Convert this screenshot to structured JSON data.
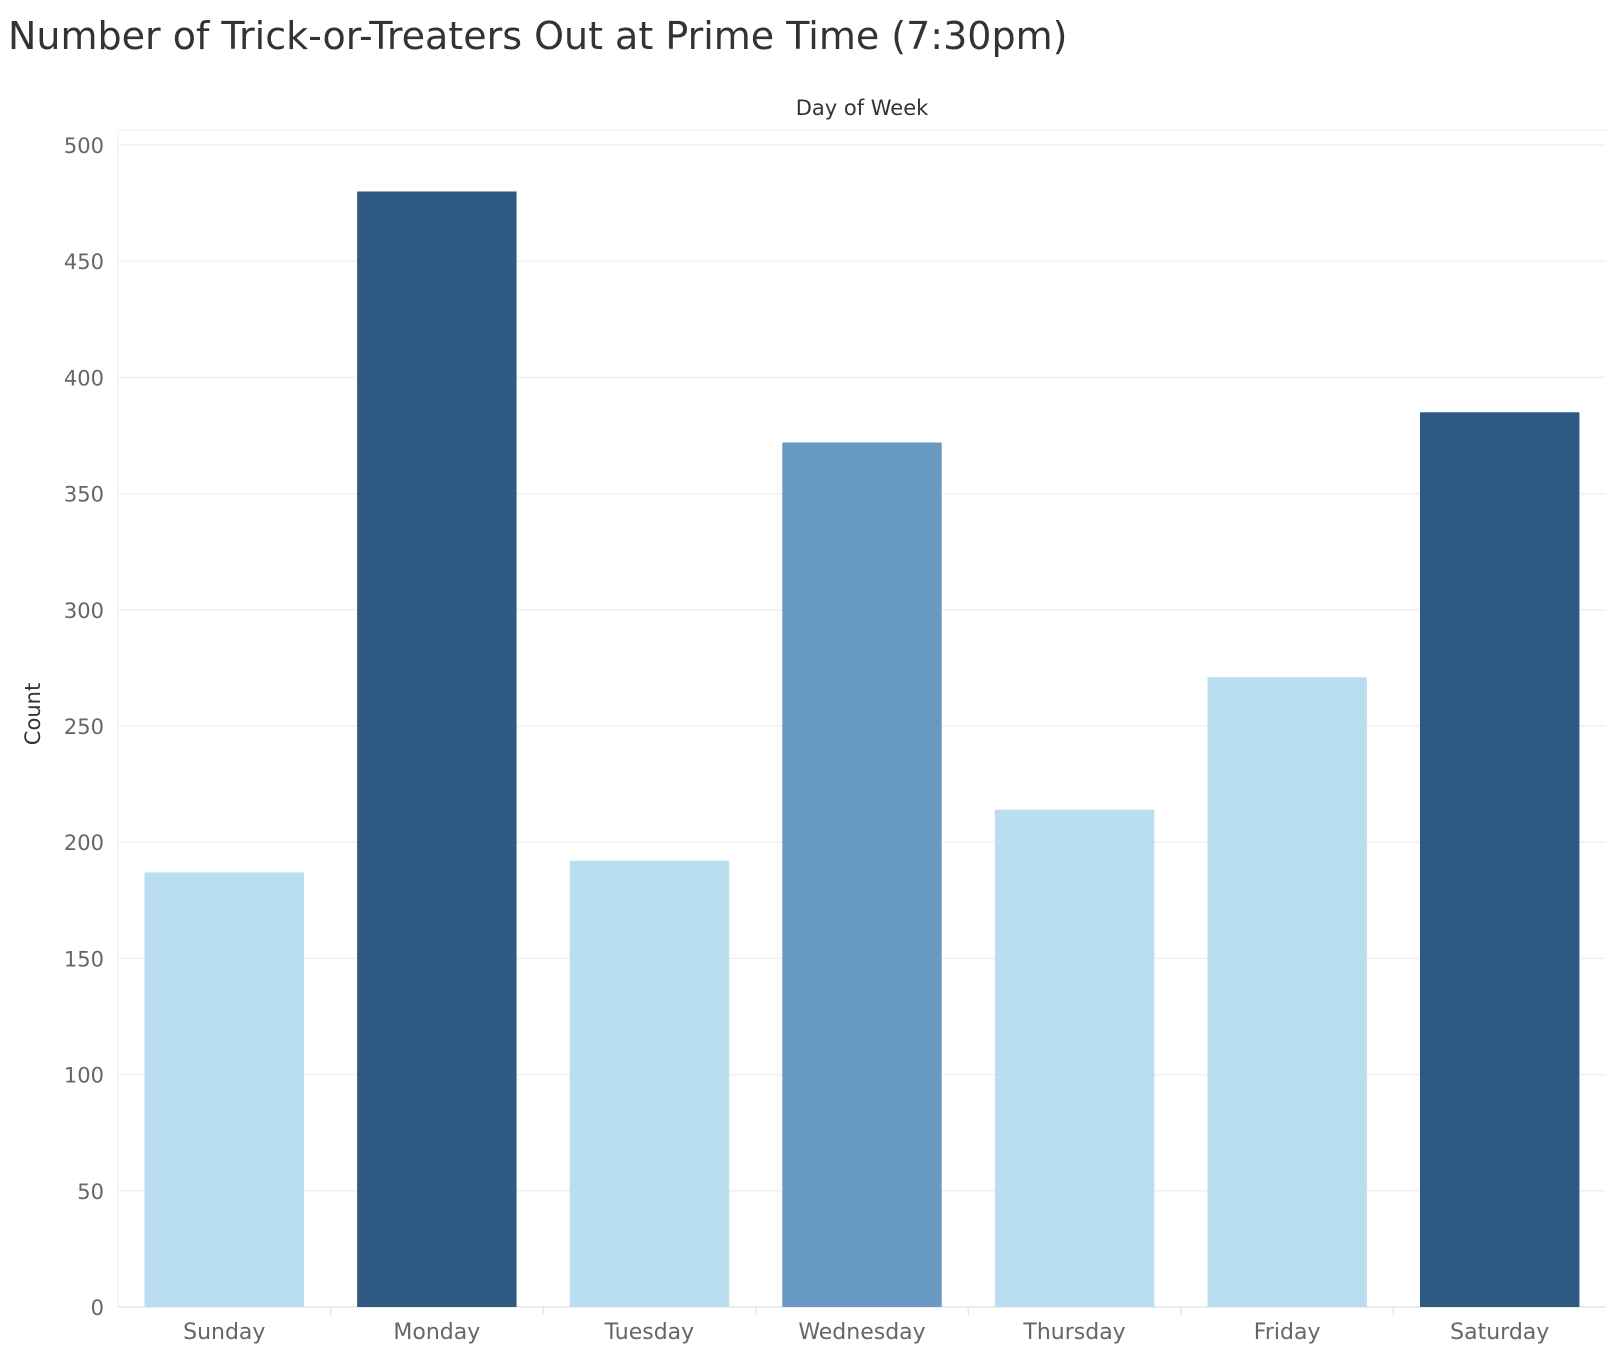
{
  "chart_data": {
    "type": "bar",
    "title": "Number of Trick-or-Treaters Out at Prime Time (7:30pm)",
    "xlabel": "Day of Week",
    "ylabel": "Count",
    "categories": [
      "Sunday",
      "Monday",
      "Tuesday",
      "Wednesday",
      "Thursday",
      "Friday",
      "Saturday"
    ],
    "values": [
      187,
      480,
      192,
      372,
      214,
      271,
      385
    ],
    "bar_colors": [
      "#b9def0",
      "#2d5983",
      "#b9def0",
      "#6899c2",
      "#b9def0",
      "#b9def0",
      "#2d5983"
    ],
    "ylim": [
      0,
      500
    ],
    "yticks": [
      0,
      50,
      100,
      150,
      200,
      250,
      300,
      350,
      400,
      450,
      500
    ],
    "grid": true,
    "legend": "none"
  }
}
